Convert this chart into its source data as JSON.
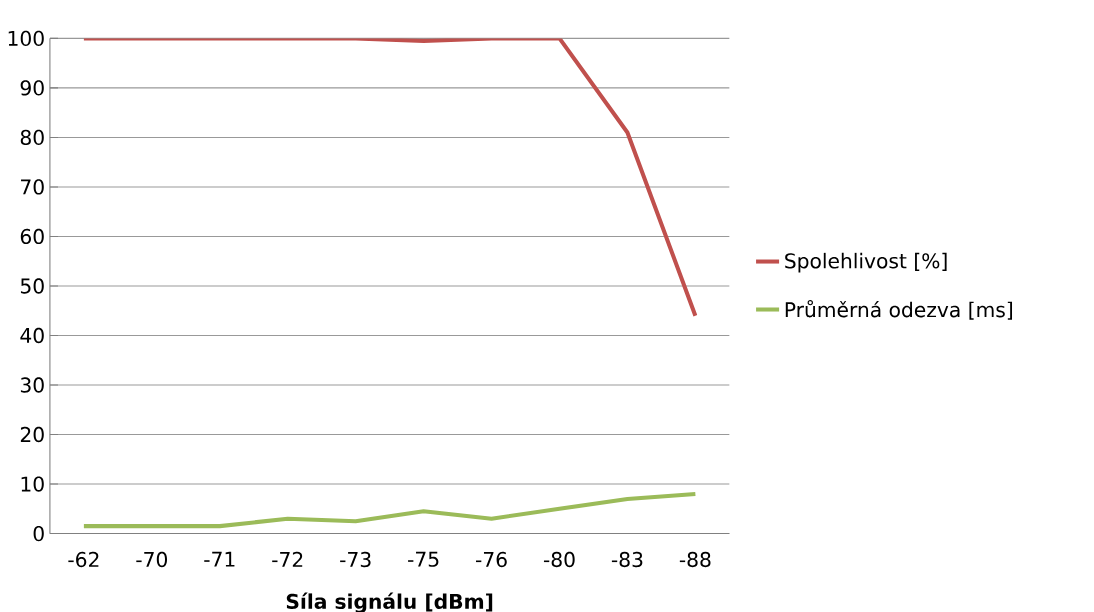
{
  "chart_data": {
    "type": "line",
    "xlabel": "Síla signálu  [dBm]",
    "categories": [
      "-62",
      "-70",
      "-71",
      "-72",
      "-73",
      "-75",
      "-76",
      "-80",
      "-83",
      "-88"
    ],
    "series": [
      {
        "name": "Spolehlivost [%]",
        "color": "#c0504d",
        "values": [
          100,
          100,
          100,
          100,
          100,
          99.5,
          100,
          100,
          81,
          44
        ]
      },
      {
        "name": "Průměrná odezva [ms]",
        "color": "#9bbb59",
        "values": [
          1.5,
          1.5,
          1.5,
          3,
          2.5,
          4.5,
          3,
          5,
          7,
          8
        ]
      }
    ],
    "ylim": [
      0,
      100
    ],
    "yticks": [
      0,
      10,
      20,
      30,
      40,
      50,
      60,
      70,
      80,
      90,
      100
    ],
    "grid": "y",
    "legend": "right",
    "marker": "none",
    "line_style": "solid"
  }
}
